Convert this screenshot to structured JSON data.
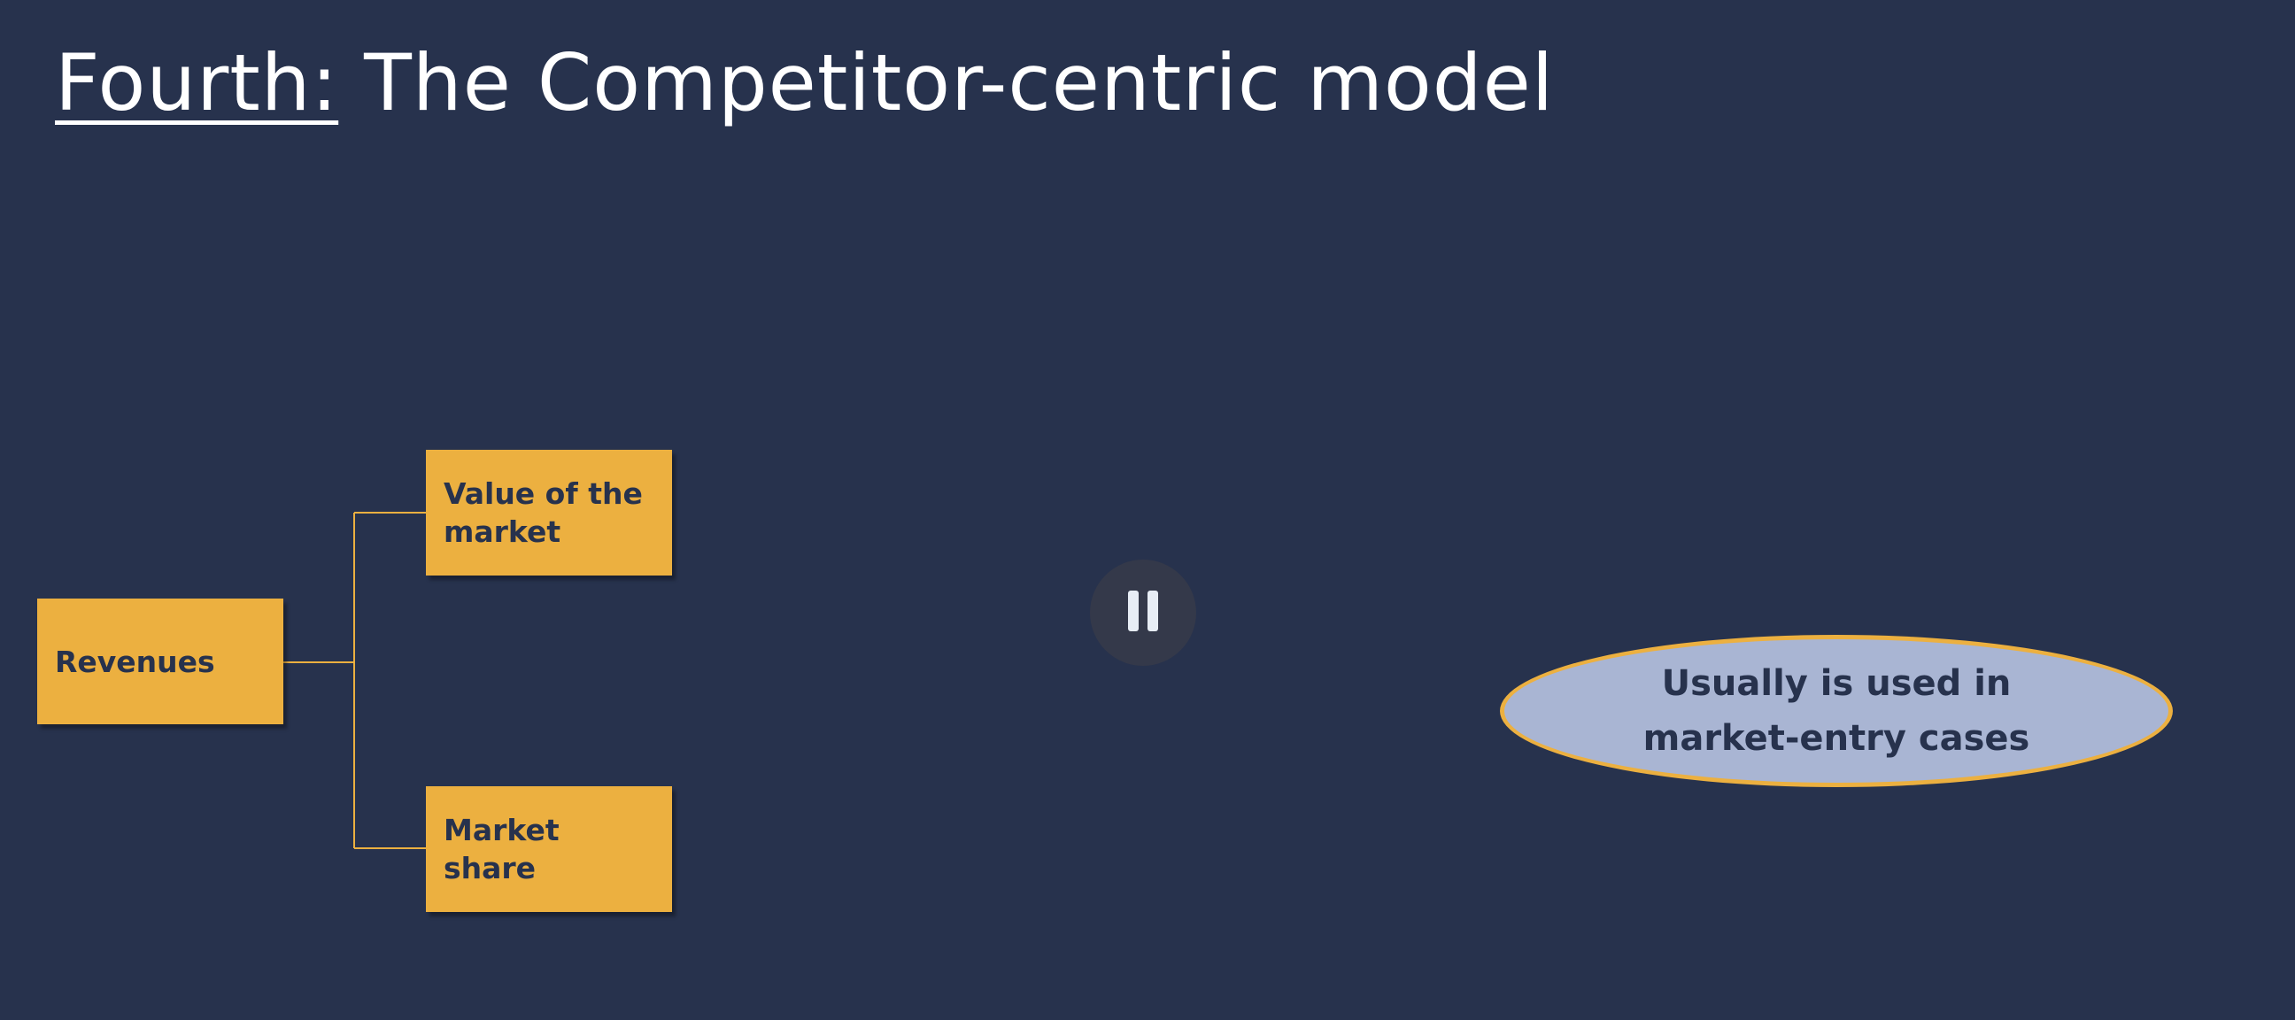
{
  "slide": {
    "title_prefix": "Fourth:",
    "title_rest": " The Competitor-centric model"
  },
  "diagram": {
    "root": "Revenues",
    "children": [
      "Value of the market",
      "Market share"
    ]
  },
  "note": {
    "text": "Usually is used in market-entry cases"
  },
  "player": {
    "pause_icon": "pause-icon"
  },
  "colors": {
    "background": "#27324d",
    "box_fill": "#ecb040",
    "box_text": "#27324d",
    "oval_fill": "#a9b5d3",
    "oval_border": "#ecb040",
    "connector": "#ecb040"
  }
}
